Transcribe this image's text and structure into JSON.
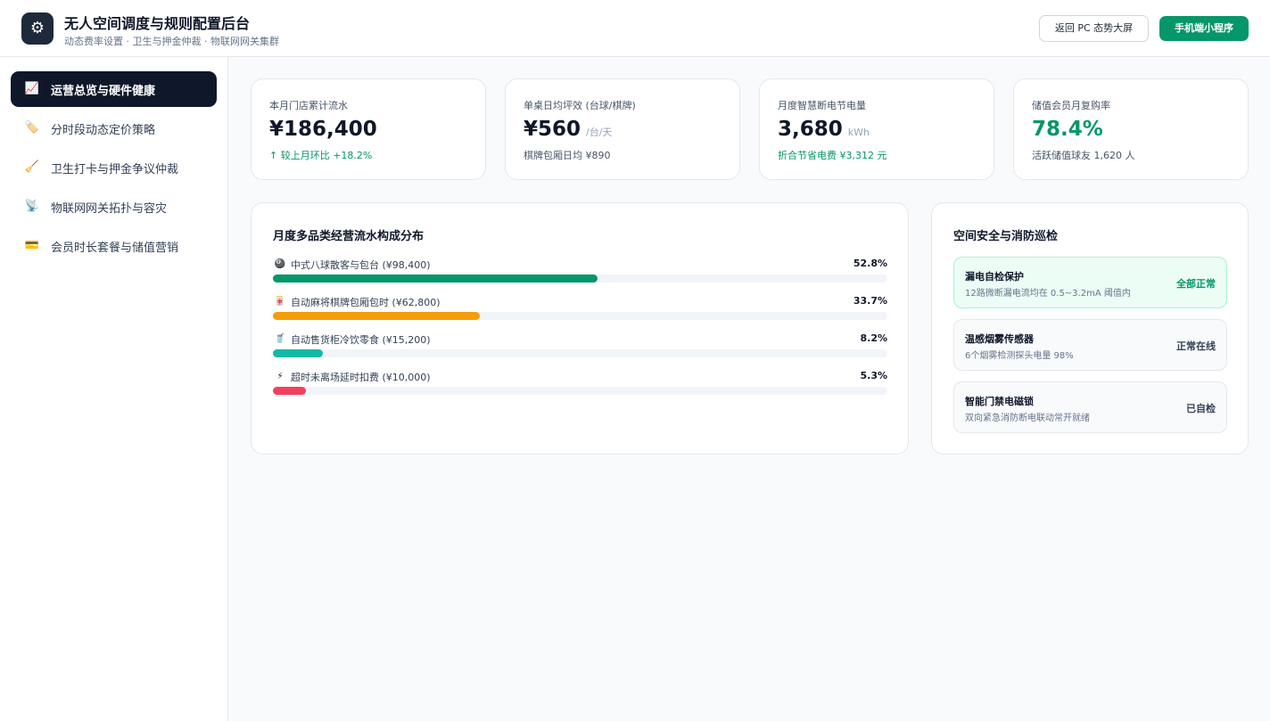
{
  "header": {
    "logo_icon": "gear-icon",
    "title": "无人空间调度与规则配置后台",
    "subtitle": "动态费率设置 · 卫生与押金仲裁 · 物联网网关集群",
    "back_button": "返回 PC 态势大屏",
    "mini_program_button": "手机端小程序"
  },
  "sidebar": {
    "items": [
      {
        "icon": "chart-up-icon",
        "glyph": "📈",
        "label": "运营总览与硬件健康",
        "active": true
      },
      {
        "icon": "price-tag-icon",
        "glyph": "🏷️",
        "label": "分时段动态定价策略",
        "active": false
      },
      {
        "icon": "broom-icon",
        "glyph": "🧹",
        "label": "卫生打卡与押金争议仲裁",
        "active": false
      },
      {
        "icon": "satellite-icon",
        "glyph": "📡",
        "label": "物联网网关拓扑与容灾",
        "active": false
      },
      {
        "icon": "credit-card-icon",
        "glyph": "💳",
        "label": "会员时长套餐与储值营销",
        "active": false
      }
    ]
  },
  "kpis": [
    {
      "label": "本月门店累计流水",
      "value": "¥186,400",
      "unit": "",
      "sub": "↑ 较上月环比 +18.2%",
      "sub_green": true,
      "value_green": false
    },
    {
      "label": "单桌日均坪效 (台球/棋牌)",
      "value": "¥560",
      "unit": "/台/天",
      "sub": "棋牌包厢日均 ¥890",
      "sub_green": false,
      "value_green": false
    },
    {
      "label": "月度智慧断电节电量",
      "value": "3,680",
      "unit": "kWh",
      "sub": "折合节省电费 ¥3,312 元",
      "sub_green": true,
      "value_green": false
    },
    {
      "label": "储值会员月复购率",
      "value": "78.4%",
      "unit": "",
      "sub": "活跃储值球友 1,620 人",
      "sub_green": false,
      "value_green": true
    }
  ],
  "distribution": {
    "title": "月度多品类经营流水构成分布",
    "rows": [
      {
        "icon": "billiard-ball-icon",
        "glyph": "🎱",
        "label": "中式八球散客与包台 (¥98,400)",
        "pct_label": "52.8%",
        "pct": 52.8,
        "color": "#059669"
      },
      {
        "icon": "mahjong-icon",
        "glyph": "🀄",
        "label": "自动麻将棋牌包厢包时 (¥62,800)",
        "pct_label": "33.7%",
        "pct": 33.7,
        "color": "#f59e0b"
      },
      {
        "icon": "drink-icon",
        "glyph": "🥤",
        "label": "自动售货柜冷饮零食 (¥15,200)",
        "pct_label": "8.2%",
        "pct": 8.2,
        "color": "#14b8a6"
      },
      {
        "icon": "lightning-icon",
        "glyph": "⚡",
        "label": "超时未离场延时扣费 (¥10,000)",
        "pct_label": "5.3%",
        "pct": 5.3,
        "color": "#f43f5e"
      }
    ]
  },
  "safety": {
    "title": "空间安全与消防巡检",
    "items": [
      {
        "title": "漏电自检保护",
        "desc": "12路微断漏电流均在 0.5~3.2mA 阈值内",
        "status": "全部正常",
        "ok": true
      },
      {
        "title": "温感烟雾传感器",
        "desc": "6个烟雾检测探头电量 98%",
        "status": "正常在线",
        "ok": false
      },
      {
        "title": "智能门禁电磁锁",
        "desc": "双向紧急消防断电联动常开就绪",
        "status": "已自检",
        "ok": false
      }
    ]
  }
}
